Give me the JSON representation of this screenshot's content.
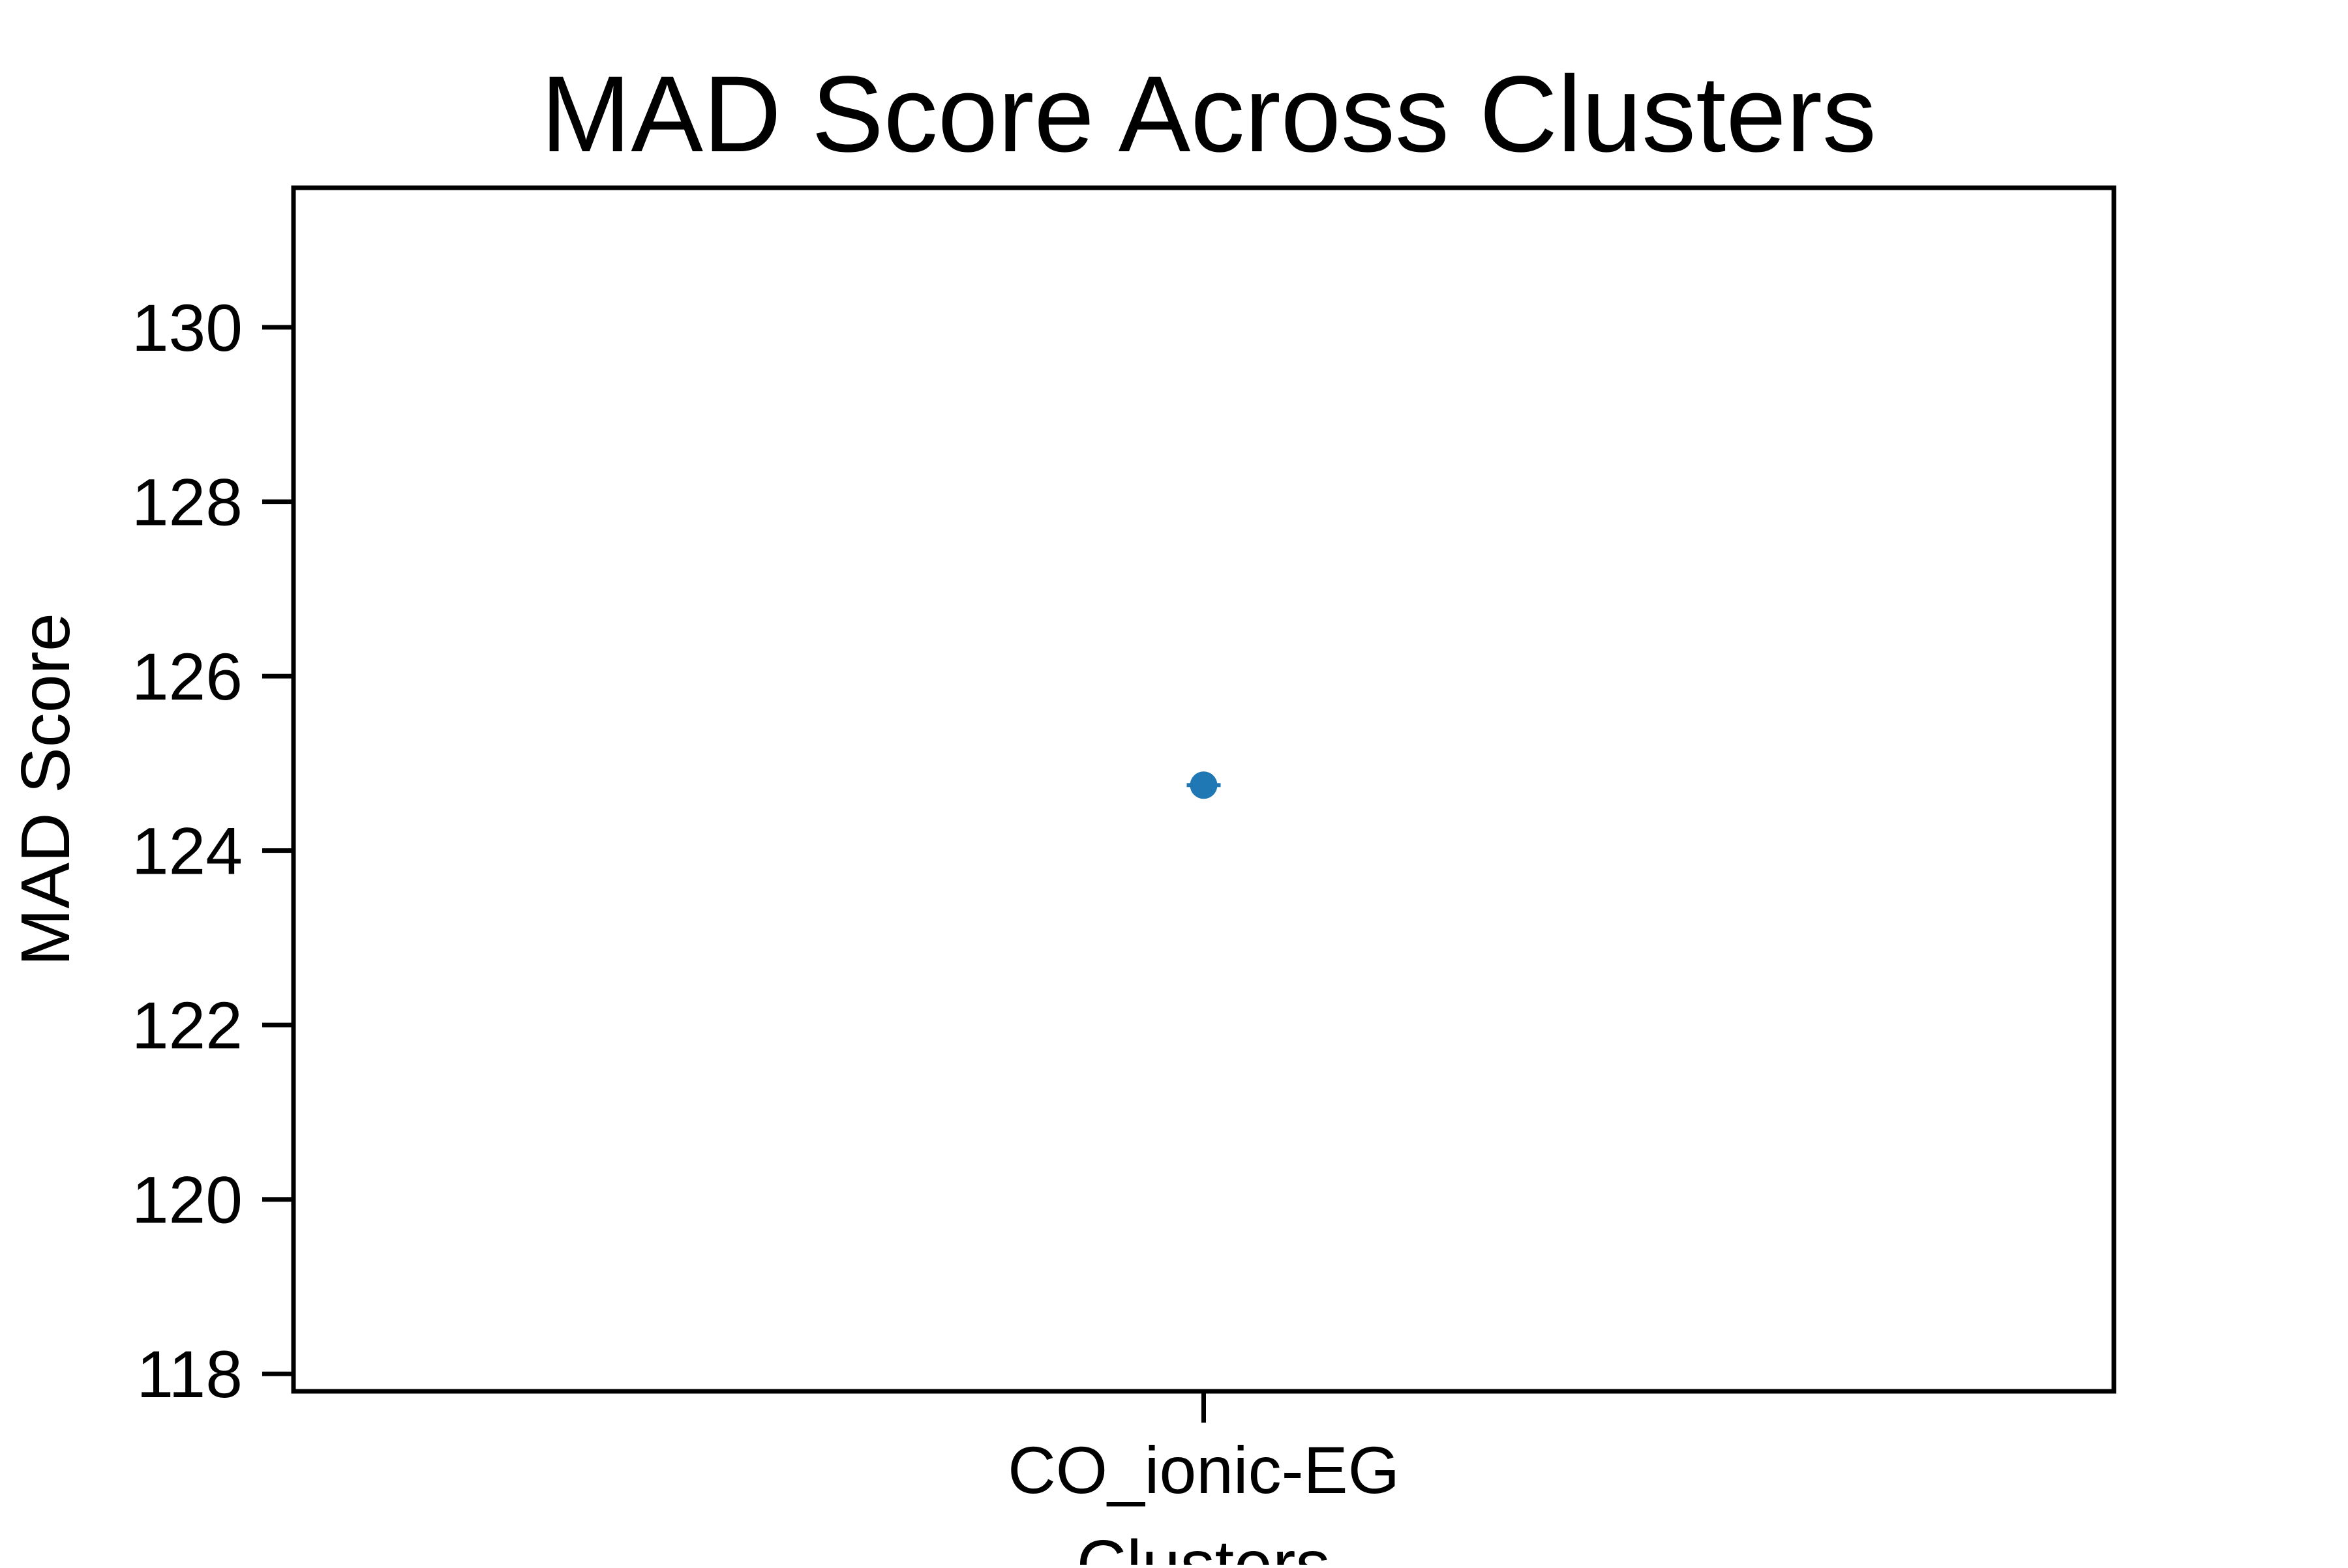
{
  "chart_data": {
    "type": "scatter",
    "title": "MAD Score Across Clusters",
    "xlabel": "Clusters",
    "ylabel": "MAD Score",
    "categories": [
      "CO_ionic-EG"
    ],
    "series": [
      {
        "values": [
          124.75
        ],
        "color": "#1f77b4"
      }
    ],
    "ylim": [
      117.8,
      131.6
    ],
    "yticks": [
      118,
      120,
      122,
      124,
      126,
      128,
      130
    ],
    "grid": false,
    "legend": "none"
  }
}
